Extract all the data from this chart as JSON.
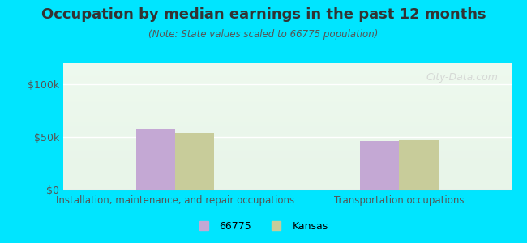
{
  "title": "Occupation by median earnings in the past 12 months",
  "subtitle": "(Note: State values scaled to 66775 population)",
  "categories": [
    "Installation, maintenance, and repair occupations",
    "Transportation occupations"
  ],
  "values_66775": [
    58000,
    46000
  ],
  "values_kansas": [
    54000,
    47000
  ],
  "bar_color_66775": "#c4a8d4",
  "bar_color_kansas": "#c8cc9a",
  "ylim": [
    0,
    120000
  ],
  "yticks": [
    0,
    50000,
    100000
  ],
  "ytick_labels": [
    "$0",
    "$50k",
    "$100k"
  ],
  "legend_labels": [
    "66775",
    "Kansas"
  ],
  "background_outer": "#00e5ff",
  "background_inner": "#e8f5e9",
  "plot_bg_top": "#ffffff",
  "watermark": "City-Data.com",
  "bar_width": 0.35,
  "group_positions": [
    1,
    3
  ]
}
